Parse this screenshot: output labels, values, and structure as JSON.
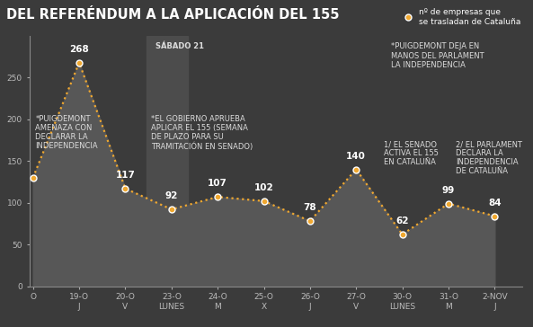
{
  "chart_data": {
    "type": "line",
    "title": "DEL REFERÉNDUM A LA APLICACIÓN DEL 155",
    "series_name": "nº de empresas que\nse trasladan de Cataluña",
    "categories": [
      "O",
      "19-O\nJ",
      "20-O\nV",
      "23-O\nLUNES",
      "24-O\nM",
      "25-O\nX",
      "26-O\nJ",
      "27-O\nV",
      "30-O\nLUNES",
      "31-O\nM",
      "2-NOV\nJ"
    ],
    "values": [
      130,
      268,
      117,
      92,
      107,
      102,
      78,
      140,
      62,
      99,
      84
    ],
    "value_labels": [
      null,
      "268",
      "117",
      "92",
      "107",
      "102",
      "78",
      "140",
      "62",
      "99",
      "84"
    ],
    "color": "#f0a830",
    "marker": "o",
    "line_style": "dotted",
    "ylim": [
      0,
      300
    ],
    "yticks": [
      0,
      50,
      100,
      150,
      200,
      250
    ],
    "grid": false,
    "legend": "upper right",
    "annotations": [
      {
        "text": "*PUIGDEMONT\nAMENAZA CON\nDECLARAR LA\nINDEPENDENCIA",
        "category": "19-O\nJ"
      },
      {
        "text": "SÁBADO 21",
        "category": "23-O\nLUNES"
      },
      {
        "text": "*EL GOBIERNO APRUEBA\nAPLICAR EL 155 (SEMANA\nDE PLAZO PARA SU\nTRAMITACIÓN EN SENADO)",
        "category": "23-O\nLUNES"
      },
      {
        "text": "*PUIGDEMONT DEJA EN\nMANOS DEL PARLAMENT\nLA INDEPENDENCIA",
        "category": "27-O\nV"
      },
      {
        "text": "1/ EL SENADO\nACTIVA EL 155\nEN CATALUÑA",
        "category": "30-O\nLUNES"
      },
      {
        "text": "2/ EL PARLAMENT\nDECLARA LA\nINDEPENDENCIA\nDE CATALUÑA",
        "category": "31-O\nM"
      }
    ]
  }
}
